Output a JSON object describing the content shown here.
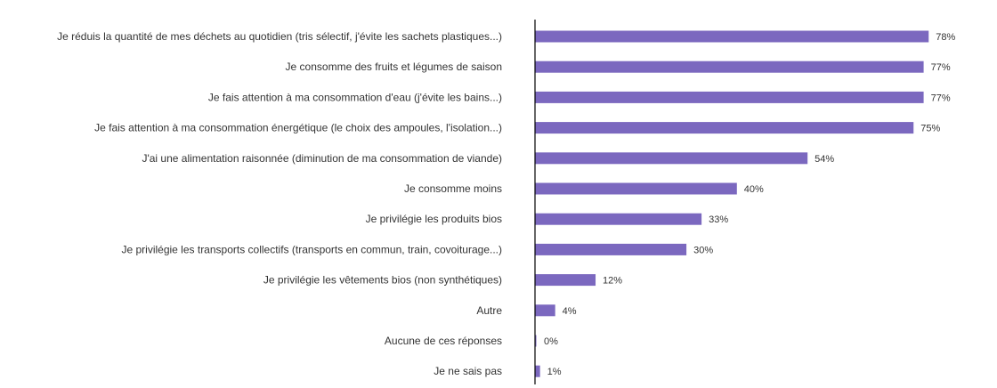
{
  "chart_data": {
    "type": "bar",
    "orientation": "horizontal",
    "categories": [
      "Je réduis la quantité de mes déchets au quotidien (tris sélectif, j'évite les sachets plastiques...)",
      "Je consomme des fruits et légumes de saison",
      "Je fais attention à ma consommation d'eau (j'évite les bains...)",
      "Je fais attention à ma consommation énergétique (le choix des ampoules, l'isolation...)",
      "J'ai une alimentation raisonnée (diminution de ma consommation de viande)",
      "Je consomme moins",
      "Je privilégie les produits bios",
      "Je privilégie les transports collectifs (transports en commun, train, covoiturage...)",
      "Je privilégie les vêtements bios (non synthétiques)",
      "Autre",
      "Aucune de ces réponses",
      "Je ne sais pas"
    ],
    "values": [
      78,
      77,
      77,
      75,
      54,
      40,
      33,
      30,
      12,
      4,
      0,
      1
    ],
    "value_labels": [
      "78%",
      "77%",
      "77%",
      "75%",
      "54%",
      "40%",
      "33%",
      "30%",
      "12%",
      "4%",
      "0%",
      "1%"
    ],
    "xlim": [
      0,
      100
    ],
    "grid": false,
    "legend": "none",
    "colors": {
      "bar": "#7b68bf",
      "axis": "#000000",
      "text": "#333333"
    }
  }
}
